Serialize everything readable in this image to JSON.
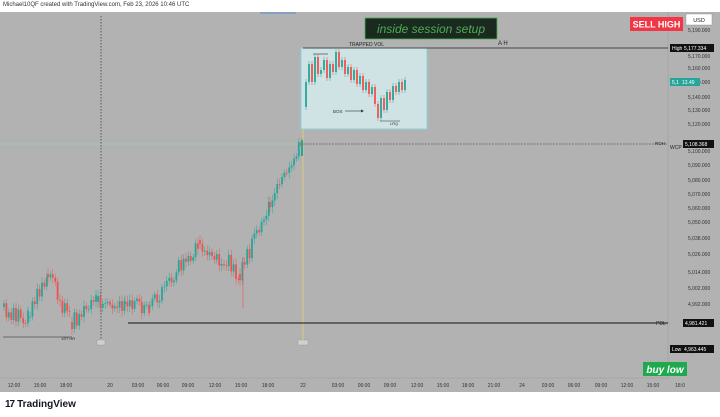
{
  "header": {
    "attribution": "Michael10QF created with TradingView.com, Feb 23, 2026 10:46 UTC"
  },
  "footer": {
    "logo_mark": "17",
    "logo_text": "TradingView"
  },
  "chart": {
    "currency": "USD",
    "price_ticks": [
      "5,190.000",
      "5,170.000",
      "5,160.000",
      "5,150.000",
      "5,140.000",
      "5,130.000",
      "5,120.000",
      "5,100.000",
      "5,090.000",
      "5,080.000",
      "5,070.000",
      "5,060.000",
      "5,050.000",
      "5,038.000",
      "5,026.000",
      "5,014.000",
      "5,002.000",
      "4,992.000",
      "4,972.000",
      "4,952.000"
    ],
    "time_ticks": [
      "12:00",
      "15:00",
      "18:00",
      "20",
      "03:00",
      "06:00",
      "09:00",
      "12:00",
      "15:00",
      "18:00",
      "22",
      "03:00",
      "06:00",
      "09:00",
      "12:00",
      "15:00",
      "18:00",
      "21:00",
      "24",
      "03:00",
      "06:00",
      "09:00",
      "12:00",
      "15:00",
      "18:0"
    ],
    "badges": {
      "high_label": "High",
      "high_value": "5,177.334",
      "current_value": "13.49",
      "current_value_prefix": "5,1",
      "bsl_value": "5,108.368",
      "low_label": "Low",
      "low_value": "4,963.445",
      "pdl_value": "4,981.421"
    },
    "annotations": {
      "inside_session_setup": "inside session setup",
      "sell_high": "SELL HIGH",
      "buy_low": "buy low",
      "trapped_vol": "TRAPPED VOL",
      "ah": "A H",
      "bos": "BOS",
      "lrq": "LRQ",
      "roh": "ROH",
      "wcp": "WCP",
      "pdl": "PDL",
      "ist_hr": "1ST HR"
    },
    "colors": {
      "background": "#b2b2b2",
      "up_candle": "#26a69a",
      "down_candle": "#ef5350",
      "session_box": "#cfe3e4",
      "session_box_border": "#8fd2d6",
      "sell_high_bg": "#f23645",
      "buy_low_bg": "#1fa94f",
      "inside_setup_text": "#4caf50"
    }
  }
}
